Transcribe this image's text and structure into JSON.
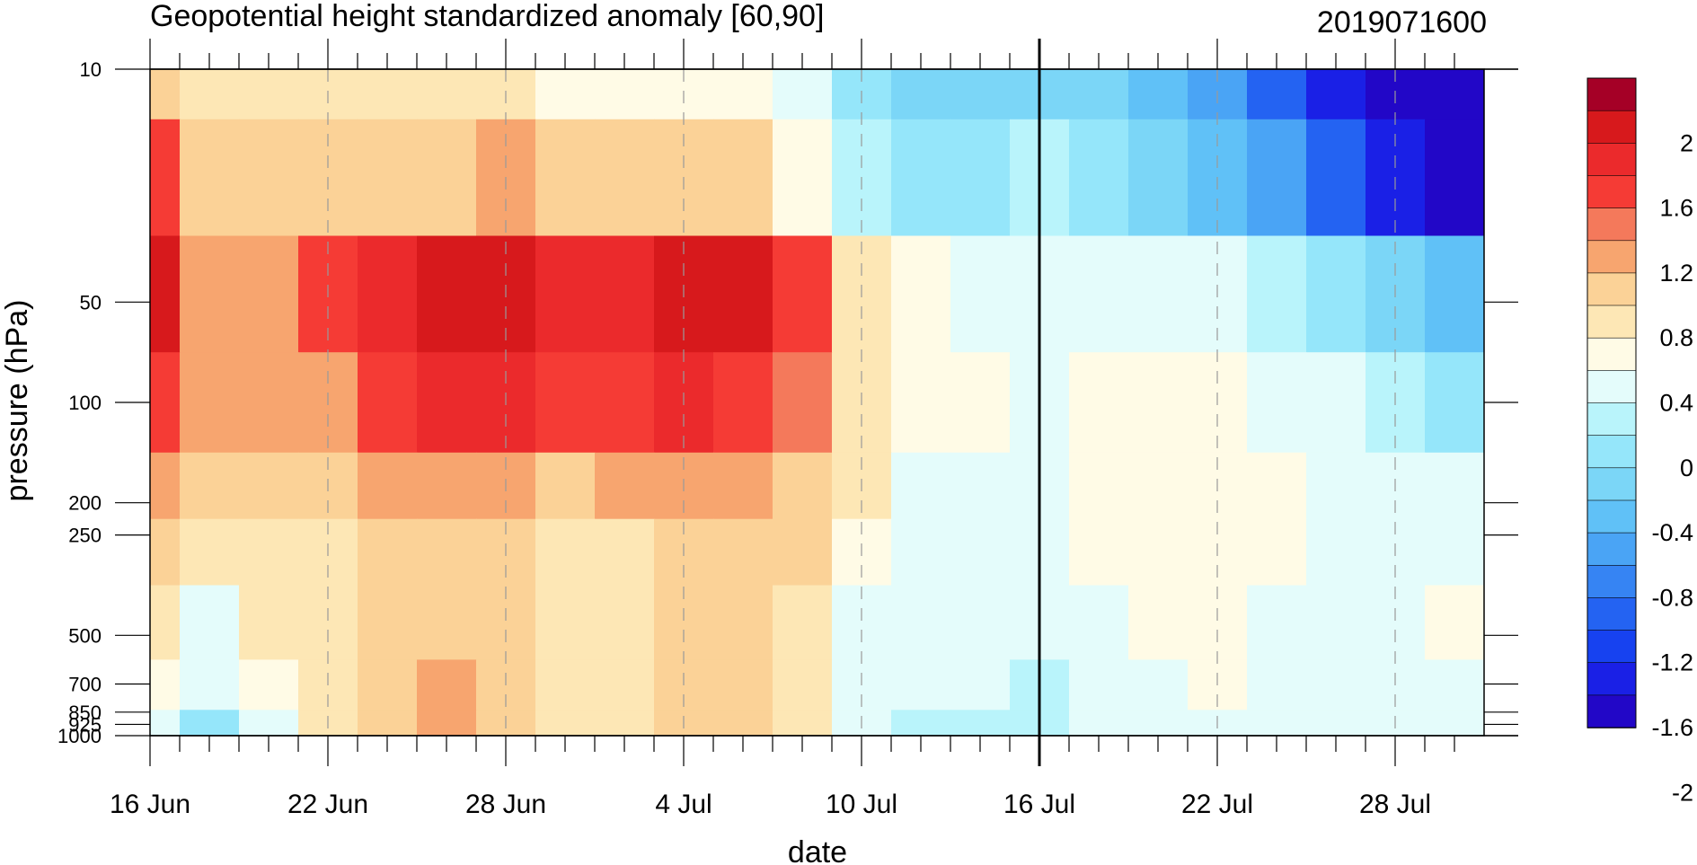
{
  "chart_data": {
    "type": "heatmap",
    "title": "Geopotential height standardized anomaly [60,90]",
    "date_stamp": "2019071600",
    "xlabel": "date",
    "ylabel": "pressure (hPa)",
    "x_ticks": [
      "16 Jun",
      "22 Jun",
      "28 Jun",
      "4 Jul",
      "10 Jul",
      "16 Jul",
      "22 Jul",
      "28 Jul"
    ],
    "x_range": [
      "2019-06-16",
      "2019-07-31"
    ],
    "y_ticks": [
      "10",
      "50",
      "100",
      "200",
      "250",
      "500",
      "700",
      "850",
      "925",
      "1000"
    ],
    "y_scale": "log",
    "y_range": [
      1000,
      10
    ],
    "current_date_marker": "16 Jul",
    "contour_levels": [
      -2.2,
      -2.0,
      -1.8,
      -1.6,
      -1.4,
      -1.2,
      -1.0,
      -0.8,
      -0.6,
      -0.4,
      -0.2,
      0,
      0.2,
      0.4,
      0.6,
      0.8,
      1.0,
      1.2,
      1.4,
      1.6,
      1.8,
      2.0,
      2.2
    ],
    "colorbar_labels": [
      "2",
      "1.6",
      "1.2",
      "0.8",
      "0.4",
      "0",
      "-0.4",
      "-0.8",
      "-1.2",
      "-1.6",
      "-2"
    ],
    "colorbar_colors": [
      "#a50026",
      "#d7191c",
      "#eb2a2c",
      "#f53b35",
      "#f4795b",
      "#f7a56f",
      "#fbd297",
      "#fde7b5",
      "#fffbe6",
      "#e4fcfb",
      "#b9f4fb",
      "#95e6fa",
      "#7bd6f7",
      "#60c1f7",
      "#4aa4f5",
      "#3684f3",
      "#2463f2",
      "#1742f0",
      "#1a20e6",
      "#2207c7"
    ],
    "grid": "vertical dashed lines at labeled dates",
    "legend": "colorbar right",
    "field": {
      "dates": [
        "16 Jun",
        "18 Jun",
        "20 Jun",
        "22 Jun",
        "24 Jun",
        "26 Jun",
        "28 Jun",
        "30 Jun",
        "2 Jul",
        "4 Jul",
        "6 Jul",
        "8 Jul",
        "10 Jul",
        "12 Jul",
        "14 Jul",
        "16 Jul",
        "18 Jul",
        "20 Jul",
        "22 Jul",
        "24 Jul",
        "26 Jul",
        "28 Jul",
        "30 Jul"
      ],
      "levels_hpa": [
        10,
        20,
        50,
        100,
        200,
        250,
        500,
        700,
        1000
      ],
      "rows": [
        [
          0.7,
          0.4,
          0.4,
          0.4,
          0.4,
          0.4,
          0.5,
          0.3,
          0.3,
          0.3,
          0.3,
          0.0,
          -0.3,
          -0.5,
          -0.5,
          -0.5,
          -0.5,
          -0.7,
          -1.0,
          -1.4,
          -1.8,
          -2.1,
          -2.3
        ],
        [
          1.2,
          0.7,
          0.6,
          0.6,
          0.7,
          0.7,
          0.8,
          0.6,
          0.6,
          0.7,
          0.6,
          0.3,
          -0.1,
          -0.3,
          -0.4,
          -0.2,
          -0.3,
          -0.5,
          -0.7,
          -1.0,
          -1.4,
          -1.7,
          -2.0
        ],
        [
          1.6,
          0.9,
          0.9,
          1.2,
          1.5,
          1.6,
          1.7,
          1.4,
          1.4,
          1.7,
          1.6,
          1.2,
          0.5,
          0.3,
          0.1,
          0.0,
          0.1,
          0.1,
          0.0,
          -0.2,
          -0.4,
          -0.6,
          -0.8
        ],
        [
          1.3,
          0.8,
          0.8,
          0.9,
          1.2,
          1.4,
          1.5,
          1.2,
          1.3,
          1.4,
          1.3,
          1.0,
          0.5,
          0.3,
          0.2,
          0.1,
          0.2,
          0.3,
          0.2,
          0.1,
          0.0,
          -0.1,
          -0.3
        ],
        [
          0.9,
          0.6,
          0.6,
          0.6,
          0.8,
          0.9,
          0.8,
          0.7,
          0.8,
          0.8,
          0.8,
          0.7,
          0.4,
          0.1,
          0.1,
          0.1,
          0.2,
          0.3,
          0.3,
          0.2,
          0.1,
          0.1,
          0.1
        ],
        [
          0.7,
          0.5,
          0.5,
          0.5,
          0.6,
          0.7,
          0.7,
          0.5,
          0.4,
          0.6,
          0.6,
          0.6,
          0.3,
          0.1,
          0.1,
          0.1,
          0.2,
          0.3,
          0.3,
          0.2,
          0.1,
          0.1,
          0.1
        ],
        [
          0.4,
          0.1,
          0.4,
          0.4,
          0.6,
          0.7,
          0.6,
          0.4,
          0.4,
          0.6,
          0.6,
          0.5,
          0.1,
          0.1,
          0.1,
          0.0,
          0.1,
          0.3,
          0.3,
          0.1,
          0.1,
          0.1,
          0.3
        ],
        [
          0.3,
          0.0,
          0.3,
          0.4,
          0.6,
          0.8,
          0.7,
          0.4,
          0.4,
          0.6,
          0.6,
          0.4,
          0.0,
          0.0,
          0.1,
          -0.1,
          0.0,
          0.1,
          0.3,
          0.1,
          0.1,
          0.1,
          0.1
        ],
        [
          0.1,
          -0.3,
          0.0,
          0.4,
          0.6,
          0.8,
          0.7,
          0.4,
          0.4,
          0.6,
          0.6,
          0.4,
          0.0,
          -0.1,
          -0.1,
          -0.2,
          0.0,
          0.1,
          0.1,
          0.1,
          0.1,
          0.1,
          0.1
        ]
      ]
    }
  }
}
